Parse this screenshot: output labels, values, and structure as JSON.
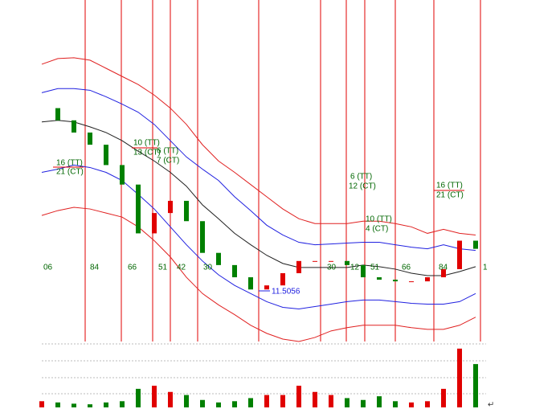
{
  "chart_data": {
    "type": "candlestick-bands",
    "xlim": [
      0,
      27.65
    ],
    "ylim": [
      10.8,
      15
    ],
    "x": [
      0,
      1,
      2,
      3,
      4,
      5,
      6,
      7,
      8,
      9,
      10,
      11,
      12,
      13,
      14,
      15,
      16,
      17,
      18,
      19,
      20,
      21,
      22,
      23,
      24,
      25,
      26,
      27
    ],
    "close": [
      13.67,
      13.52,
      13.37,
      13.22,
      12.97,
      12.73,
      12.13,
      12.38,
      12.53,
      12.28,
      11.89,
      11.74,
      11.59,
      11.44,
      11.49,
      11.64,
      11.79,
      11.79,
      11.79,
      11.74,
      11.59,
      11.56,
      11.54,
      11.54,
      11.59,
      11.69,
      12.04,
      11.94
    ],
    "up_color": "#e00000",
    "down_color": "#008000",
    "series": [
      {
        "color": "#e02020",
        "values": [
          14.21,
          14.28,
          14.29,
          14.26,
          14.16,
          14.06,
          13.96,
          13.83,
          13.67,
          13.47,
          13.22,
          13.02,
          12.88,
          12.73,
          12.58,
          12.43,
          12.31,
          12.25,
          12.25,
          12.25,
          12.28,
          12.28,
          12.25,
          12.21,
          12.13,
          12.18,
          12.13,
          12.11
        ]
      },
      {
        "color": "#2020e0",
        "values": [
          13.86,
          13.91,
          13.91,
          13.89,
          13.81,
          13.72,
          13.62,
          13.47,
          13.27,
          13.07,
          12.92,
          12.78,
          12.58,
          12.41,
          12.23,
          12.11,
          12.02,
          11.99,
          12.0,
          12.01,
          12.02,
          12.02,
          11.99,
          11.96,
          11.94,
          11.99,
          11.94,
          11.92
        ]
      },
      {
        "color": "#202020",
        "values": [
          13.5,
          13.52,
          13.5,
          13.44,
          13.37,
          13.27,
          13.14,
          13.02,
          12.88,
          12.71,
          12.48,
          12.31,
          12.13,
          11.99,
          11.86,
          11.76,
          11.71,
          11.71,
          11.71,
          11.71,
          11.74,
          11.72,
          11.69,
          11.64,
          11.61,
          11.61,
          11.66,
          11.72
        ]
      },
      {
        "color": "#2020e0",
        "values": [
          12.88,
          12.92,
          12.97,
          12.94,
          12.88,
          12.78,
          12.61,
          12.43,
          12.21,
          11.99,
          11.79,
          11.62,
          11.49,
          11.39,
          11.29,
          11.22,
          11.2,
          11.23,
          11.26,
          11.29,
          11.31,
          11.31,
          11.29,
          11.27,
          11.26,
          11.26,
          11.29,
          11.39
        ]
      },
      {
        "color": "#e02020",
        "values": [
          12.35,
          12.41,
          12.45,
          12.43,
          12.38,
          12.33,
          12.21,
          12.04,
          11.84,
          11.59,
          11.39,
          11.25,
          11.13,
          11.0,
          10.9,
          10.83,
          10.8,
          10.85,
          10.93,
          10.97,
          11.0,
          11.0,
          11.0,
          10.97,
          10.95,
          10.95,
          11.0,
          11.1
        ]
      }
    ],
    "cycle_lines": [
      2.7,
      4.95,
      6.9,
      8.0,
      9.7,
      13.5,
      17.35,
      18.95,
      20.1,
      22.0,
      24.4,
      27.3
    ],
    "cycle_color": "#e00000",
    "time_labels": [
      {
        "x": 0.1,
        "label": "06"
      },
      {
        "x": 3.0,
        "label": "84"
      },
      {
        "x": 5.35,
        "label": "66"
      },
      {
        "x": 7.25,
        "label": "51"
      },
      {
        "x": 8.4,
        "label": "42"
      },
      {
        "x": 10.05,
        "label": "30"
      },
      {
        "x": 17.75,
        "label": "30"
      },
      {
        "x": 19.2,
        "label": "12"
      },
      {
        "x": 20.45,
        "label": "51"
      },
      {
        "x": 22.4,
        "label": "66"
      },
      {
        "x": 24.7,
        "label": "84"
      },
      {
        "x": 27.45,
        "label": "1"
      }
    ],
    "annotations": [
      "16 (TT)",
      "21 (CT)",
      "10 (TT)",
      "13 (CT)",
      "6 (TT)",
      "7 (CT)",
      "6 (TT)",
      "12 (CT)",
      "10 (TT)",
      "4 (CT)",
      "16 (TT)",
      "21 (CT)"
    ],
    "low_label": "11.5056",
    "volume": [
      10,
      8,
      6,
      5,
      8,
      10,
      30,
      35,
      25,
      20,
      12,
      8,
      10,
      15,
      20,
      20,
      35,
      25,
      20,
      15,
      12,
      18,
      10,
      8,
      10,
      30,
      95,
      70
    ],
    "volume_ylim": [
      0,
      100
    ],
    "footer_symbol": "↵"
  }
}
